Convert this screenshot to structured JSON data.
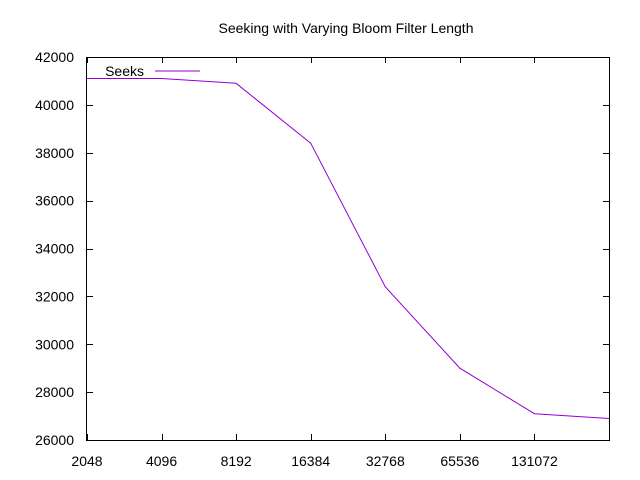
{
  "chart_data": {
    "type": "line",
    "title": "Seeking with Varying Bloom Filter Length",
    "xlabel": "",
    "ylabel": "",
    "x_scale": "log2",
    "x_ticks": [
      "2048",
      "4096",
      "8192",
      "16384",
      "32768",
      "65536",
      "131072"
    ],
    "xlim": [
      2048,
      262144
    ],
    "y_ticks": [
      "26000",
      "28000",
      "30000",
      "32000",
      "34000",
      "36000",
      "38000",
      "40000",
      "42000"
    ],
    "ylim": [
      26000,
      42000
    ],
    "grid": false,
    "legend": "top-left",
    "series": [
      {
        "name": "Seeks",
        "color": "#9400d3",
        "x": [
          2048,
          4096,
          8192,
          16384,
          32768,
          65536,
          131072,
          262144
        ],
        "y": [
          41100,
          41100,
          40900,
          38400,
          32400,
          29000,
          27100,
          26900
        ]
      }
    ]
  }
}
